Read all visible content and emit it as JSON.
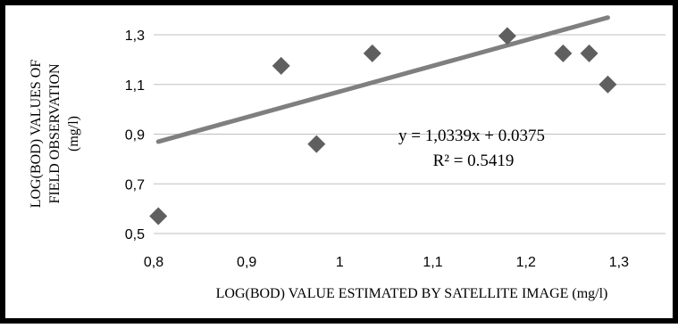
{
  "chart_data": {
    "type": "scatter",
    "title": "",
    "xlabel": "LOG(BOD) VALUE ESTIMATED BY SATELLITE IMAGE (mg/l)",
    "ylabel": "LOG(BOD) VALUES OF FIELD OBSERVATION (mg/l)",
    "ylabel_lines": [
      "LOG(BOD) VALUES OF",
      "FIELD OBSERVATION",
      "(mg/l)"
    ],
    "xlim": [
      0.8,
      1.35
    ],
    "ylim": [
      0.5,
      1.3
    ],
    "x_ticks": [
      0.8,
      0.9,
      1.0,
      1.1,
      1.2,
      1.3
    ],
    "x_tick_labels": [
      "0,8",
      "0,9",
      "1",
      "1,1",
      "1,2",
      "1,3"
    ],
    "y_ticks": [
      0.5,
      0.7,
      0.9,
      1.1,
      1.3
    ],
    "y_tick_labels": [
      "0,5",
      "0,7",
      "0,9",
      "1,1",
      "1,3"
    ],
    "grid": {
      "horizontal": true,
      "vertical": false
    },
    "legend": "none",
    "points": [
      {
        "x": 0.805,
        "y": 0.57
      },
      {
        "x": 0.937,
        "y": 1.175
      },
      {
        "x": 0.975,
        "y": 0.86
      },
      {
        "x": 1.035,
        "y": 1.225
      },
      {
        "x": 1.18,
        "y": 1.295
      },
      {
        "x": 1.24,
        "y": 1.225
      },
      {
        "x": 1.268,
        "y": 1.225
      },
      {
        "x": 1.288,
        "y": 1.1
      }
    ],
    "trendline": {
      "x_start": 0.805,
      "x_end": 1.288,
      "slope": 1.0339,
      "intercept": 0.0375
    },
    "equation_text": "y = 1,0339x + 0.0375",
    "r2_text": "R² = 0.5419",
    "colors": {
      "marker": "#5f5f5f",
      "trendline": "#7f7f7f",
      "grid": "#bfbfbf",
      "frame": "#000000"
    }
  }
}
